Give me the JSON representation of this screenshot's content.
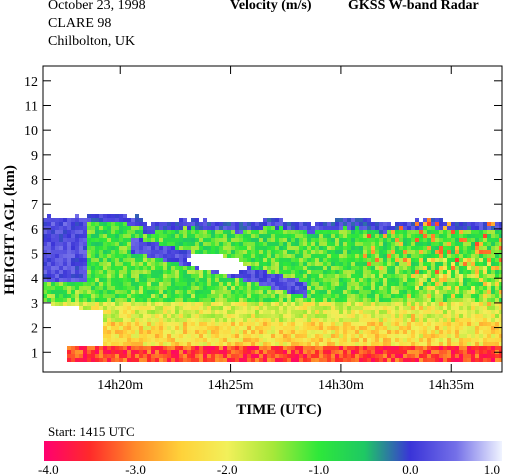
{
  "header": {
    "date": "October  23, 1998",
    "campaign": "CLARE 98",
    "site": "Chilbolton, UK",
    "quantity": "Velocity (m/s)",
    "instrument": "GKSS  W-band Radar"
  },
  "start_label": "Start:  1415 UTC",
  "chart_data": {
    "type": "heatmap",
    "title": "Velocity (m/s)",
    "xlabel": "TIME (UTC)",
    "ylabel": "HEIGHT AGL (km)",
    "xticks": [
      "14h20m",
      "14h25m",
      "14h30m",
      "14h35m"
    ],
    "xtick_minutes": [
      20,
      25,
      30,
      35
    ],
    "xlim_minutes": [
      16.5,
      37.3
    ],
    "yticks": [
      1,
      2,
      3,
      4,
      5,
      6,
      7,
      8,
      9,
      10,
      11,
      12
    ],
    "ylim": [
      0.2,
      12.6
    ],
    "colorbar": {
      "min": -4.0,
      "max": 1.0,
      "tick_values": [
        -4.0,
        -3.0,
        -2.0,
        -1.0,
        0.0,
        1.0
      ],
      "tick_labels": [
        "-4.0",
        "-3.0",
        "-2.0",
        "-1.0",
        "0.0",
        "1.0"
      ],
      "colors": [
        "#ff0070",
        "#ff2a2a",
        "#ff8a2a",
        "#ffd23a",
        "#f2f05a",
        "#a6e83a",
        "#2ee83a",
        "#1ec864",
        "#3a34d8",
        "#7470e8",
        "#f0f4ff"
      ]
    },
    "echo_top_km": 6.3,
    "echo_base_km": 0.6,
    "features": [
      {
        "name": "upward velocity band",
        "velocity": 0.3
      },
      {
        "name": "near-surface fall streaks",
        "velocity": -3.8
      }
    ]
  }
}
